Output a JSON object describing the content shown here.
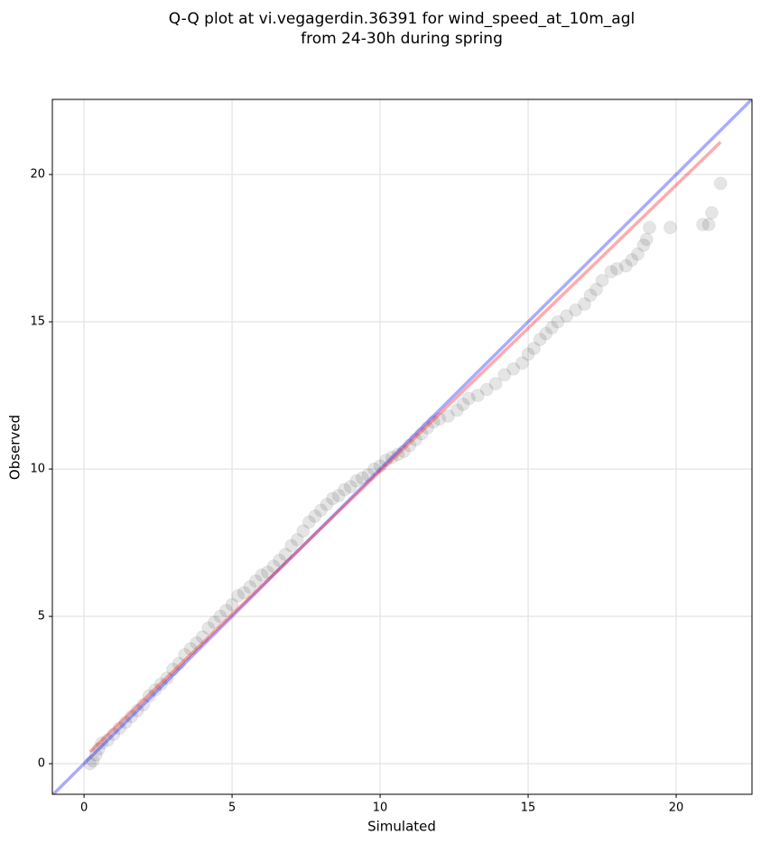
{
  "chart_data": {
    "type": "scatter",
    "title": [
      "Q-Q plot at vi.vegagerdin.36391 for wind_speed_at_10m_agl",
      "from 24-30h during spring"
    ],
    "x_label": "Simulated",
    "y_label": "Observed",
    "xlim": [
      -1.07,
      22.56
    ],
    "ylim": [
      -1.04,
      22.55
    ],
    "xticks": [
      0,
      5,
      10,
      15,
      20
    ],
    "yticks": [
      0,
      5,
      10,
      15,
      20
    ],
    "grid": true,
    "color": "#000000",
    "x": [
      0.2,
      0.3,
      0.4,
      0.5,
      0.6,
      0.8,
      1.0,
      1.2,
      1.4,
      1.6,
      1.8,
      2.0,
      2.2,
      2.4,
      2.6,
      2.8,
      3.0,
      3.2,
      3.4,
      3.6,
      3.8,
      4.0,
      4.2,
      4.4,
      4.6,
      4.8,
      5.0,
      5.2,
      5.4,
      5.6,
      5.8,
      6.0,
      6.2,
      6.4,
      6.6,
      6.8,
      7.0,
      7.2,
      7.4,
      7.6,
      7.8,
      8.0,
      8.2,
      8.4,
      8.6,
      8.8,
      9.0,
      9.2,
      9.4,
      9.6,
      9.8,
      10.0,
      10.2,
      10.4,
      10.6,
      10.8,
      11.0,
      11.2,
      11.4,
      11.6,
      11.8,
      12.0,
      12.3,
      12.6,
      12.8,
      13.0,
      13.3,
      13.6,
      13.9,
      14.2,
      14.5,
      14.8,
      15.0,
      15.2,
      15.4,
      15.6,
      15.8,
      16.0,
      16.3,
      16.6,
      16.9,
      17.1,
      17.3,
      17.5,
      17.8,
      18.0,
      18.3,
      18.5,
      18.7,
      18.9,
      19.0,
      19.1,
      19.8,
      20.9,
      21.1,
      21.2,
      21.5
    ],
    "values": [
      0.0,
      0.1,
      0.3,
      0.5,
      0.7,
      0.8,
      1.0,
      1.2,
      1.4,
      1.6,
      1.8,
      2.0,
      2.3,
      2.5,
      2.7,
      2.9,
      3.2,
      3.4,
      3.7,
      3.9,
      4.1,
      4.3,
      4.6,
      4.8,
      5.0,
      5.2,
      5.4,
      5.7,
      5.8,
      6.0,
      6.2,
      6.4,
      6.5,
      6.7,
      6.9,
      7.1,
      7.4,
      7.6,
      7.9,
      8.2,
      8.4,
      8.6,
      8.8,
      9.0,
      9.1,
      9.3,
      9.4,
      9.6,
      9.7,
      9.8,
      10.0,
      10.1,
      10.3,
      10.4,
      10.5,
      10.6,
      10.8,
      11.0,
      11.2,
      11.4,
      11.6,
      11.7,
      11.8,
      12.0,
      12.2,
      12.4,
      12.5,
      12.7,
      12.9,
      13.2,
      13.4,
      13.6,
      13.9,
      14.1,
      14.4,
      14.6,
      14.8,
      15.0,
      15.2,
      15.4,
      15.6,
      15.9,
      16.1,
      16.4,
      16.7,
      16.8,
      16.9,
      17.1,
      17.3,
      17.6,
      17.8,
      18.2,
      18.2,
      18.3,
      18.3,
      18.7,
      19.7
    ],
    "lines": [
      {
        "color": "#0000ff",
        "x": [
          -1.07,
          22.56
        ],
        "y": [
          -1.07,
          22.56
        ]
      },
      {
        "color": "#ff0000",
        "x": [
          0.2,
          21.5
        ],
        "y": [
          0.4,
          21.1
        ]
      }
    ]
  }
}
